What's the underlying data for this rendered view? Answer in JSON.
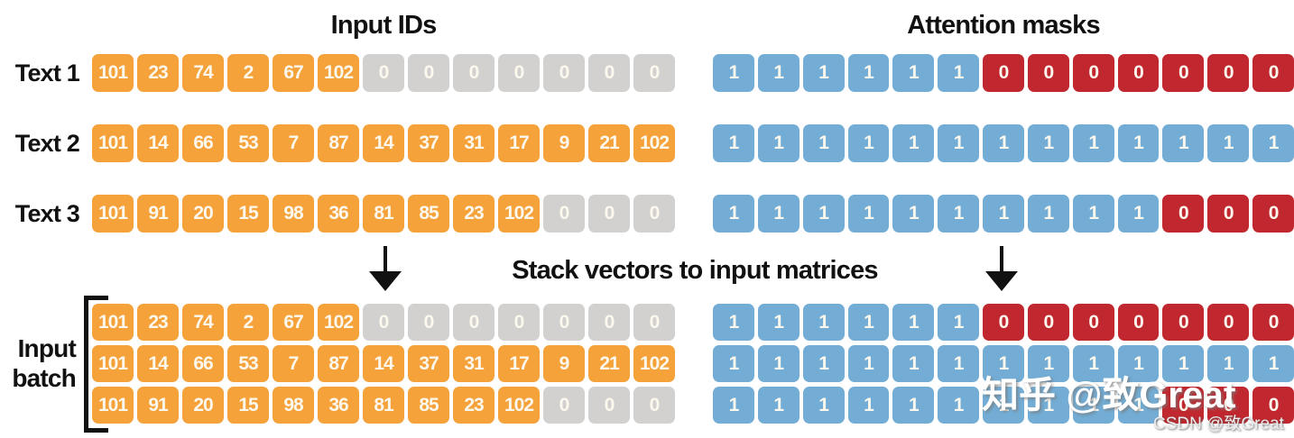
{
  "titles": {
    "input_ids": "Input IDs",
    "attention_masks": "Attention masks",
    "stack": "Stack vectors to input matrices"
  },
  "batch_label": {
    "line1": "Input",
    "line2": "batch"
  },
  "colors": {
    "token_orange": "#F5A23B",
    "padding_gray": "#D2D1CF",
    "mask_one_blue": "#73ADD5",
    "mask_zero_red": "#C1272E",
    "cell_text": "#FDF8EE",
    "text_black": "#111111"
  },
  "rows": [
    {
      "label": "Text 1",
      "input_ids": [
        101,
        23,
        74,
        2,
        67,
        102,
        0,
        0,
        0,
        0,
        0,
        0,
        0
      ],
      "attention_mask": [
        1,
        1,
        1,
        1,
        1,
        1,
        0,
        0,
        0,
        0,
        0,
        0,
        0
      ]
    },
    {
      "label": "Text 2",
      "input_ids": [
        101,
        14,
        66,
        53,
        7,
        87,
        14,
        37,
        31,
        17,
        9,
        21,
        102
      ],
      "attention_mask": [
        1,
        1,
        1,
        1,
        1,
        1,
        1,
        1,
        1,
        1,
        1,
        1,
        1
      ]
    },
    {
      "label": "Text 3",
      "input_ids": [
        101,
        91,
        20,
        15,
        98,
        36,
        81,
        85,
        23,
        102,
        0,
        0,
        0
      ],
      "attention_mask": [
        1,
        1,
        1,
        1,
        1,
        1,
        1,
        1,
        1,
        1,
        0,
        0,
        0
      ]
    }
  ],
  "batch": {
    "input_ids_matrix": [
      [
        101,
        23,
        74,
        2,
        67,
        102,
        0,
        0,
        0,
        0,
        0,
        0,
        0
      ],
      [
        101,
        14,
        66,
        53,
        7,
        87,
        14,
        37,
        31,
        17,
        9,
        21,
        102
      ],
      [
        101,
        91,
        20,
        15,
        98,
        36,
        81,
        85,
        23,
        102,
        0,
        0,
        0
      ]
    ],
    "attention_mask_matrix": [
      [
        1,
        1,
        1,
        1,
        1,
        1,
        0,
        0,
        0,
        0,
        0,
        0,
        0
      ],
      [
        1,
        1,
        1,
        1,
        1,
        1,
        1,
        1,
        1,
        1,
        1,
        1,
        1
      ],
      [
        1,
        1,
        1,
        1,
        1,
        1,
        1,
        1,
        1,
        1,
        0,
        0,
        0
      ]
    ]
  },
  "watermarks": {
    "zhihu": "知乎 @致Great",
    "csdn": "CSDN @致Great"
  }
}
